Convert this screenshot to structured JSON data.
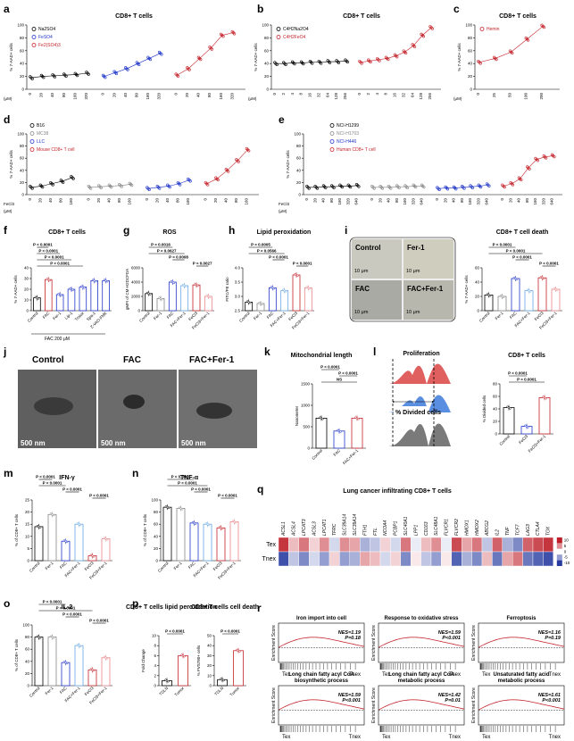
{
  "panels": {
    "a": {
      "letter": "a",
      "title": "CD8+ T cells",
      "ylabel": "% 7-AAD+ cells",
      "legend": [
        "Na2SO4",
        "FeSO4",
        "Fe2(SO4)3"
      ],
      "legend_colors": [
        "#000000",
        "#1f35c8",
        "#c4232a"
      ],
      "doses": [
        "0",
        "20",
        "40",
        "80",
        "160",
        "320",
        "0",
        "20",
        "40",
        "80",
        "160",
        "320",
        "0",
        "20",
        "40",
        "80",
        "160",
        "320"
      ],
      "unit": "(μM)",
      "yticks": [
        "0",
        "20",
        "40",
        "60",
        "80",
        "100"
      ]
    },
    "b": {
      "letter": "b",
      "title": "CD8+ T cells",
      "ylabel": "% 7-AAD+ cells",
      "legend": [
        "C4H2Na2O4",
        "C4H2FeO4"
      ],
      "legend_colors": [
        "#000000",
        "#c4232a"
      ],
      "doses": [
        "0",
        "2",
        "4",
        "8",
        "16",
        "32",
        "64",
        "128",
        "256",
        "0",
        "2",
        "4",
        "8",
        "16",
        "32",
        "64",
        "128",
        "256"
      ],
      "unit": "(μM)",
      "yticks": [
        "0",
        "20",
        "40",
        "60",
        "80",
        "100"
      ]
    },
    "c": {
      "letter": "c",
      "title": "CD8+ T cells",
      "ylabel": "% 7-AAD+ cells",
      "legend": [
        "Hemin"
      ],
      "legend_colors": [
        "#c4232a"
      ],
      "doses": [
        "0",
        "25",
        "50",
        "100",
        "200"
      ],
      "unit": "(μM)",
      "yticks": [
        "0",
        "20",
        "40",
        "60",
        "80",
        "100"
      ]
    },
    "d": {
      "letter": "d",
      "legend": [
        "B16",
        "MC38",
        "LLC",
        "Mouse CD8+ T cell"
      ],
      "legend_colors": [
        "#000000",
        "#888888",
        "#1f35c8",
        "#c4232a"
      ],
      "xprefix": "FeCl3",
      "unit": "(μM)",
      "ylabel": "% 7-AAD+ cells",
      "yticks": [
        "0",
        "20",
        "40",
        "60",
        "80",
        "100"
      ],
      "doses": [
        "0",
        "20",
        "40",
        "80",
        "160",
        "0",
        "20",
        "40",
        "80",
        "160",
        "0",
        "20",
        "40",
        "80",
        "160",
        "0",
        "20",
        "40",
        "80",
        "160"
      ]
    },
    "e": {
      "letter": "e",
      "legend": [
        "NCI-H1299",
        "NCI-H1703",
        "NCI-H446",
        "Human CD8+ T cell"
      ],
      "legend_colors": [
        "#000000",
        "#888888",
        "#1f35c8",
        "#c4232a"
      ],
      "xprefix": "FeCl3",
      "unit": "(μM)",
      "ylabel": "% 7-AAD+ cells",
      "yticks": [
        "0",
        "20",
        "40",
        "60",
        "80",
        "100"
      ],
      "doses": [
        "0",
        "20",
        "40",
        "80",
        "160",
        "320",
        "640"
      ]
    },
    "f": {
      "letter": "f",
      "title": "CD8+ T cells",
      "ylabel": "% 7-AAD+ cells",
      "cats": [
        "Control",
        "FAC",
        "Fer-1",
        "Lip-1",
        "Trolox",
        "Spa-1",
        "Z-VAD-FMK"
      ],
      "sig": [
        "P < 0.0001",
        "P < 0.0001",
        "P < 0.0001",
        "P < 0.0001"
      ],
      "footer": "FAC 200 μM",
      "yticks": [
        "0",
        "10",
        "20",
        "30",
        "40"
      ]
    },
    "g": {
      "letter": "g",
      "title": "ROS",
      "ylabel": "gMFI of CM-H2DCFDA",
      "cats": [
        "Control",
        "Fer-1",
        "FAC",
        "FAC+Fer-1",
        "FeCl3",
        "FeCl3+Fer-1"
      ],
      "sig": [
        "P = 0.0027",
        "P = 0.0008",
        "P = 0.0627",
        "P = 0.0016"
      ],
      "yticks": [
        "0",
        "2000",
        "4000",
        "6000"
      ]
    },
    "h": {
      "letter": "h",
      "title": "Lipid peroxidation",
      "ylabel": "FITC/PE ratio",
      "cats": [
        "Control",
        "Fer-1",
        "FAC",
        "FAC+Fer-1",
        "FeCl3",
        "FeCl3+Fer-1"
      ],
      "sig": [
        "P < 0.0001",
        "P < 0.0001",
        "P = 0.0566",
        "P = 0.0005"
      ],
      "yticks": [
        "2.5",
        "3.0",
        "3.5",
        "4.0"
      ]
    },
    "i": {
      "letter": "i",
      "micro": [
        "Control",
        "Fer-1",
        "FAC",
        "FAC+Fer-1"
      ],
      "scale": "10 μm",
      "title": "CD8+ T cell death",
      "ylabel": "% 7-AAD+ cells",
      "cats": [
        "Control",
        "Fer-1",
        "FAC",
        "FAC+Fer-1",
        "FeCl3",
        "FeCl3+Fer-1"
      ],
      "sig": [
        "P < 0.0001",
        "P < 0.0001",
        "P < 0.0001",
        "P < 0.0001"
      ],
      "yticks": [
        "0",
        "20",
        "40",
        "60"
      ]
    },
    "j": {
      "letter": "j",
      "labels": [
        "Control",
        "FAC",
        "FAC+Fer-1"
      ],
      "scale": "500 nm"
    },
    "k": {
      "letter": "k",
      "title": "Mitochondrial length",
      "ylabel": "Nanometer",
      "cats": [
        "Control",
        "FAC",
        "FAC+Fer-1"
      ],
      "sig": [
        "NS",
        "P < 0.0001",
        "P < 0.0001"
      ],
      "yticks": [
        "0",
        "500",
        "1000",
        "1500"
      ]
    },
    "l": {
      "letter": "l",
      "title": "Proliferation",
      "hist_label": "% Divided cells",
      "title2": "CD8+ T cells",
      "ylabel": "% Divided cells",
      "cats": [
        "Control",
        "FeCl3",
        "FeCl3+Fer-1"
      ],
      "sig": [
        "P = 0.0001",
        "P < 0.0001"
      ],
      "yticks": [
        "0",
        "20",
        "40",
        "60",
        "80"
      ]
    },
    "m": {
      "letter": "m",
      "title": "IFN-γ",
      "ylabel": "% of CD8+ T cells",
      "cats": [
        "Control",
        "Fer-1",
        "FAC",
        "FAC+Fer-1",
        "FeCl3",
        "FeCl3+Fer-1"
      ],
      "sig": [
        "P < 0.0001",
        "P < 0.0001",
        "P < 0.0001",
        "P < 0.0001"
      ],
      "yticks": [
        "0",
        "5",
        "10",
        "15",
        "20",
        "25"
      ]
    },
    "n": {
      "letter": "n",
      "title": "TNF-α",
      "ylabel": "% of CD8+ T cells",
      "cats": [
        "Control",
        "Fer-1",
        "FAC",
        "FAC+Fer-1",
        "FeCl3",
        "FeCl3+Fer-1"
      ],
      "sig": [
        "P < 0.0001",
        "P < 0.0001",
        "P < 0.0001",
        "P < 0.0001"
      ],
      "yticks": [
        "0",
        "20",
        "40",
        "60",
        "80",
        "100"
      ]
    },
    "o": {
      "letter": "o",
      "title": "IL-2",
      "ylabel": "% of CD8+ T cells",
      "cats": [
        "Control",
        "Fer-1",
        "FAC",
        "FAC+Fer-1",
        "FeCl3",
        "FeCl3+Fer-1"
      ],
      "sig": [
        "P < 0.0001",
        "P < 0.0001",
        "P < 0.0001",
        "P < 0.0001"
      ],
      "yticks": [
        "0",
        "20",
        "40",
        "60",
        "80",
        "100"
      ]
    },
    "p": {
      "letter": "p",
      "title1": "CD8+ T cells lipid peroxidation",
      "title2": "CD8+ T cells cell death",
      "ylabel1": "Fold Change",
      "ylabel2": "% FVS780+ cells",
      "cats": [
        "TDLN",
        "Tumor"
      ],
      "sig": [
        "P < 0.0001",
        "P < 0.0001"
      ],
      "yticks1": [
        "0",
        "2",
        "4",
        "6",
        "8",
        "10"
      ],
      "yticks2": [
        "0",
        "10",
        "20",
        "30",
        "40",
        "50"
      ]
    },
    "q": {
      "letter": "q",
      "title": "Lung cancer infiltrating CD8+ T cells",
      "genes": [
        "ACSL1",
        "ACSL4",
        "LPCAT3",
        "ACSL3",
        "LPCAT1",
        "TFRC",
        "SLC39A14",
        "SLC39A14",
        "FTH1",
        "FTL",
        "NCOA4",
        "PCBP1",
        "SLC40A1",
        "LPP1",
        "CD163",
        "SLC48A1",
        "FLVCR1",
        "FLVCR2",
        "HMOX1",
        "HMOX2",
        "ABCG2",
        "IL2",
        "TNF",
        "TCF7",
        "LAG3",
        "CTLA4",
        "TOX"
      ],
      "rows": [
        "Tex",
        "Tnex"
      ],
      "scale": [
        "10",
        "5",
        "0",
        "-5",
        "-10"
      ]
    },
    "r": {
      "letter": "r",
      "ylabel": "Enrichment Score",
      "xlabels": [
        "Tex",
        "Tnex"
      ],
      "plots": [
        {
          "title": "Iron import into cell",
          "nes": "NES=1.19",
          "p": "P=0.18"
        },
        {
          "title": "Response to oxidative stress",
          "nes": "NES=1.59",
          "p": "P<0.001"
        },
        {
          "title": "Ferroptosis",
          "nes": "NES=1.16",
          "p": "P=0.19"
        },
        {
          "title": "Long chain fatty acyl CoA biosynthetic process",
          "nes": "NES=1.59",
          "p": "P<0.001"
        },
        {
          "title": "Long chain fatty acyl CoA metabolic process",
          "nes": "NES=1.42",
          "p": "P=0.01"
        },
        {
          "title": "Unsaturated fatty acid metabolic process",
          "nes": "NES=1.61",
          "p": "P<0.001"
        }
      ]
    }
  },
  "chart_data": [
    {
      "type": "scatter",
      "panel": "a",
      "title": "CD8+ T cells",
      "ylim": [
        0,
        100
      ],
      "series": [
        {
          "name": "Na2SO4",
          "x": [
            0,
            20,
            40,
            80,
            160,
            320
          ],
          "values": [
            18,
            20,
            21,
            22,
            23,
            25
          ]
        },
        {
          "name": "FeSO4",
          "x": [
            0,
            20,
            40,
            80,
            160,
            320
          ],
          "values": [
            20,
            26,
            32,
            40,
            48,
            56
          ]
        },
        {
          "name": "Fe2(SO4)3",
          "x": [
            0,
            20,
            40,
            80,
            160,
            320
          ],
          "values": [
            22,
            32,
            48,
            64,
            84,
            88
          ]
        }
      ]
    },
    {
      "type": "scatter",
      "panel": "b",
      "title": "CD8+ T cells",
      "ylim": [
        0,
        100
      ],
      "series": [
        {
          "name": "C4H2Na2O4",
          "x": [
            0,
            2,
            4,
            8,
            16,
            32,
            64,
            128,
            256
          ],
          "values": [
            40,
            40,
            41,
            41,
            42,
            42,
            43,
            43,
            44
          ]
        },
        {
          "name": "C4H2FeO4",
          "x": [
            0,
            2,
            4,
            8,
            16,
            32,
            64,
            128,
            256
          ],
          "values": [
            42,
            44,
            46,
            48,
            52,
            58,
            68,
            84,
            96
          ]
        }
      ]
    },
    {
      "type": "scatter",
      "panel": "c",
      "title": "CD8+ T cells",
      "ylim": [
        0,
        100
      ],
      "series": [
        {
          "name": "Hemin",
          "x": [
            0,
            25,
            50,
            100,
            200
          ],
          "values": [
            42,
            48,
            58,
            78,
            98
          ]
        }
      ]
    },
    {
      "type": "scatter",
      "panel": "d",
      "ylim": [
        0,
        100
      ],
      "series": [
        {
          "name": "B16",
          "values": [
            12,
            14,
            18,
            22,
            28
          ]
        },
        {
          "name": "MC38",
          "values": [
            12,
            13,
            14,
            15,
            17
          ]
        },
        {
          "name": "LLC",
          "values": [
            10,
            12,
            14,
            18,
            24
          ]
        },
        {
          "name": "Mouse CD8+ T cell",
          "values": [
            18,
            26,
            40,
            56,
            74
          ]
        }
      ]
    },
    {
      "type": "scatter",
      "panel": "e",
      "ylim": [
        0,
        100
      ],
      "series": [
        {
          "name": "NCI-H1299",
          "values": [
            12,
            12,
            13,
            13,
            14,
            14,
            15
          ]
        },
        {
          "name": "NCI-H1703",
          "values": [
            12,
            12,
            12,
            13,
            13,
            14,
            14
          ]
        },
        {
          "name": "NCI-H446",
          "values": [
            10,
            11,
            11,
            12,
            13,
            14,
            16
          ]
        },
        {
          "name": "Human CD8+ T cell",
          "values": [
            14,
            18,
            26,
            44,
            58,
            62,
            64
          ]
        }
      ]
    },
    {
      "type": "bar",
      "panel": "f",
      "categories": [
        "Control",
        "FAC",
        "Fer-1",
        "Lip-1",
        "Trolox",
        "Spa-1",
        "Z-VAD-FMK"
      ],
      "values": [
        12,
        29,
        15,
        20,
        22,
        28,
        28
      ],
      "ylim": [
        0,
        40
      ]
    },
    {
      "type": "bar",
      "panel": "g",
      "categories": [
        "Control",
        "Fer-1",
        "FAC",
        "FAC+Fer-1",
        "FeCl3",
        "FeCl3+Fer-1"
      ],
      "values": [
        2400,
        1700,
        4000,
        3500,
        3600,
        2000
      ],
      "ylim": [
        0,
        6000
      ]
    },
    {
      "type": "bar",
      "panel": "h",
      "categories": [
        "Control",
        "Fer-1",
        "FAC",
        "FAC+Fer-1",
        "FeCl3",
        "FeCl3+Fer-1"
      ],
      "values": [
        2.8,
        2.75,
        3.3,
        3.2,
        3.75,
        3.3
      ],
      "ylim": [
        2.5,
        4.0
      ]
    },
    {
      "type": "bar",
      "panel": "i",
      "categories": [
        "Control",
        "Fer-1",
        "FAC",
        "FAC+Fer-1",
        "FeCl3",
        "FeCl3+Fer-1"
      ],
      "values": [
        22,
        20,
        45,
        28,
        46,
        30
      ],
      "ylim": [
        0,
        60
      ]
    },
    {
      "type": "bar",
      "panel": "k",
      "categories": [
        "Control",
        "FAC",
        "FAC+Fer-1"
      ],
      "values": [
        700,
        400,
        700
      ],
      "ylim": [
        0,
        1500
      ]
    },
    {
      "type": "bar",
      "panel": "l",
      "categories": [
        "Control",
        "FeCl3",
        "FeCl3+Fer-1"
      ],
      "values": [
        42,
        12,
        58
      ],
      "ylim": [
        0,
        80
      ]
    },
    {
      "type": "bar",
      "panel": "m",
      "categories": [
        "Control",
        "Fer-1",
        "FAC",
        "FAC+Fer-1",
        "FeCl3",
        "FeCl3+Fer-1"
      ],
      "values": [
        14,
        19,
        8,
        15,
        2,
        9
      ],
      "ylim": [
        0,
        25
      ]
    },
    {
      "type": "bar",
      "panel": "n",
      "categories": [
        "Control",
        "Fer-1",
        "FAC",
        "FAC+Fer-1",
        "FeCl3",
        "FeCl3+Fer-1"
      ],
      "values": [
        88,
        86,
        62,
        60,
        54,
        64
      ],
      "ylim": [
        0,
        100
      ]
    },
    {
      "type": "bar",
      "panel": "o",
      "categories": [
        "Control",
        "Fer-1",
        "FAC",
        "FAC+Fer-1",
        "FeCl3",
        "FeCl3+Fer-1"
      ],
      "values": [
        80,
        80,
        38,
        66,
        26,
        46
      ],
      "ylim": [
        0,
        100
      ]
    },
    {
      "type": "bar",
      "panel": "p1",
      "categories": [
        "TDLN",
        "Tumor"
      ],
      "values": [
        1,
        6
      ],
      "ylim": [
        0,
        10
      ]
    },
    {
      "type": "bar",
      "panel": "p2",
      "categories": [
        "TDLN",
        "Tumor"
      ],
      "values": [
        6,
        35
      ],
      "ylim": [
        0,
        50
      ]
    }
  ],
  "colors": {
    "black": "#000000",
    "gray": "#888888",
    "blue": "#1f35c8",
    "red": "#c4232a",
    "lightblue": "#6aa8e6",
    "pink": "#e8858a",
    "lightgray": "#bdbdbd"
  }
}
